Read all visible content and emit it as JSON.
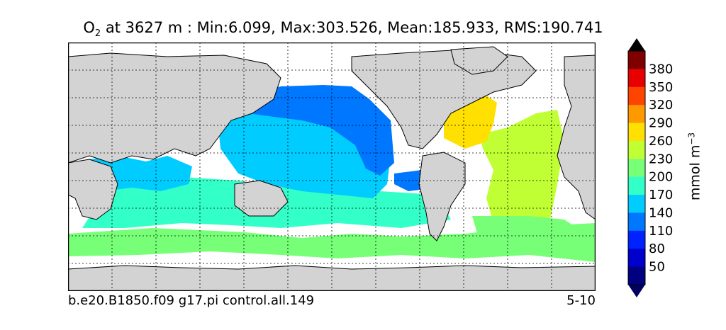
{
  "title": {
    "variable": "O",
    "subscript": "2",
    "rest": " at 3627 m : Min:6.099, Max:303.526, Mean:185.933, RMS:190.741"
  },
  "footer": {
    "case_name": "b.e20.B1850.f09 g17.pi control.all.149",
    "years": "5-10"
  },
  "colorbar": {
    "unit_label_main": "mmol m",
    "unit_label_exp": "−3",
    "ticks": [
      "50",
      "80",
      "110",
      "140",
      "170",
      "200",
      "230",
      "260",
      "290",
      "320",
      "350",
      "380"
    ],
    "levels": [
      {
        "color": "#000080"
      },
      {
        "color": "#0000cd"
      },
      {
        "color": "#0022ff"
      },
      {
        "color": "#0077ff"
      },
      {
        "color": "#00ccff"
      },
      {
        "color": "#33ffc8"
      },
      {
        "color": "#77ff77"
      },
      {
        "color": "#c0ff33"
      },
      {
        "color": "#ffe000"
      },
      {
        "color": "#ff9900"
      },
      {
        "color": "#ff4400"
      },
      {
        "color": "#e80000"
      },
      {
        "color": "#800000"
      }
    ],
    "under_color": "#000060",
    "over_color": "#000000"
  },
  "map": {
    "land_color": "#d3d3d3",
    "missing_color": "#ffffff",
    "gridline_style": "dotted"
  }
}
